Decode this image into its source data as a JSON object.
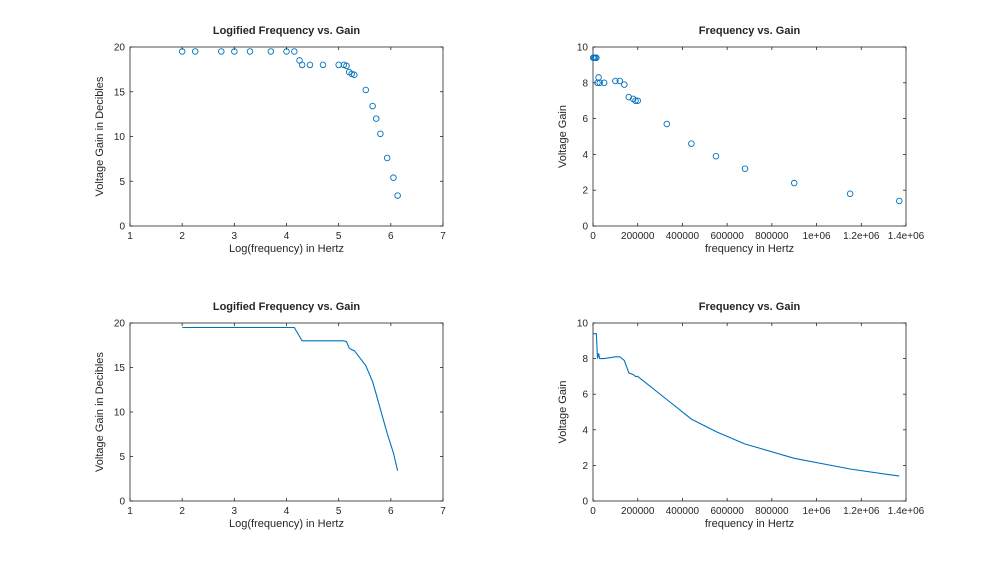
{
  "chart_data": [
    {
      "type": "scatter",
      "title": "Logified Frequency vs. Gain",
      "xlabel": "Log(frequency) in Hertz",
      "ylabel": "Voltage Gain in Decibles",
      "xlim": [
        1,
        7
      ],
      "ylim": [
        0,
        20
      ],
      "xticks": [
        "1",
        "2",
        "3",
        "4",
        "5",
        "6",
        "7"
      ],
      "yticks": [
        "0",
        "5",
        "10",
        "15",
        "20"
      ],
      "color": "#0072bd",
      "x": [
        2.0,
        2.25,
        2.75,
        3.0,
        3.3,
        3.7,
        4.0,
        4.15,
        4.25,
        4.3,
        4.45,
        4.7,
        5.0,
        5.1,
        5.15,
        5.2,
        5.25,
        5.3,
        5.52,
        5.65,
        5.72,
        5.8,
        5.93,
        6.05,
        6.13
      ],
      "y": [
        19.5,
        19.5,
        19.5,
        19.5,
        19.5,
        19.5,
        19.5,
        19.5,
        18.5,
        18.0,
        18.0,
        18.0,
        18.0,
        18.0,
        17.9,
        17.2,
        17.0,
        16.9,
        15.2,
        13.4,
        12.0,
        10.3,
        7.6,
        5.4,
        3.4
      ]
    },
    {
      "type": "scatter",
      "title": "Frequency vs. Gain",
      "xlabel": "frequency in Hertz",
      "ylabel": "Voltage Gain",
      "xlim": [
        0,
        1400000
      ],
      "ylim": [
        0,
        10
      ],
      "xticks": [
        "0",
        "200000",
        "400000",
        "600000",
        "800000",
        "1e+06",
        "1.2e+06",
        "1.4e+06"
      ],
      "yticks": [
        "0",
        "2",
        "4",
        "6",
        "8",
        "10"
      ],
      "color": "#0072bd",
      "x": [
        1000,
        5000,
        10000,
        15000,
        20000,
        25000,
        30000,
        50000,
        100000,
        120000,
        140000,
        160000,
        180000,
        190000,
        200000,
        330000,
        440000,
        550000,
        680000,
        900000,
        1150000,
        1370000
      ],
      "y": [
        9.4,
        9.4,
        9.4,
        9.4,
        8.0,
        8.3,
        8.0,
        8.0,
        8.1,
        8.1,
        7.9,
        7.2,
        7.1,
        7.0,
        7.0,
        5.7,
        4.6,
        3.9,
        3.2,
        2.4,
        1.8,
        1.4
      ]
    },
    {
      "type": "line",
      "title": "Logified Frequency vs. Gain",
      "xlabel": "Log(frequency) in Hertz",
      "ylabel": "Voltage Gain in Decibles",
      "xlim": [
        1,
        7
      ],
      "ylim": [
        0,
        20
      ],
      "xticks": [
        "1",
        "2",
        "3",
        "4",
        "5",
        "6",
        "7"
      ],
      "yticks": [
        "0",
        "5",
        "10",
        "15",
        "20"
      ],
      "color": "#0072bd",
      "x": [
        2.0,
        2.25,
        2.75,
        3.0,
        3.3,
        3.7,
        4.0,
        4.15,
        4.25,
        4.3,
        4.45,
        4.7,
        5.0,
        5.1,
        5.15,
        5.2,
        5.25,
        5.3,
        5.52,
        5.65,
        5.72,
        5.8,
        5.93,
        6.05,
        6.13
      ],
      "y": [
        19.5,
        19.5,
        19.5,
        19.5,
        19.5,
        19.5,
        19.5,
        19.5,
        18.5,
        18.0,
        18.0,
        18.0,
        18.0,
        18.0,
        17.9,
        17.2,
        17.0,
        16.9,
        15.2,
        13.4,
        12.0,
        10.3,
        7.6,
        5.4,
        3.4
      ]
    },
    {
      "type": "line",
      "title": "Frequency vs. Gain",
      "xlabel": "frequency in Hertz",
      "ylabel": "Voltage Gain",
      "xlim": [
        0,
        1400000
      ],
      "ylim": [
        0,
        10
      ],
      "xticks": [
        "0",
        "200000",
        "400000",
        "600000",
        "800000",
        "1e+06",
        "1.2e+06",
        "1.4e+06"
      ],
      "yticks": [
        "0",
        "2",
        "4",
        "6",
        "8",
        "10"
      ],
      "color": "#0072bd",
      "x": [
        1000,
        5000,
        10000,
        15000,
        20000,
        25000,
        30000,
        50000,
        100000,
        120000,
        140000,
        160000,
        180000,
        190000,
        200000,
        330000,
        440000,
        550000,
        680000,
        900000,
        1150000,
        1370000
      ],
      "y": [
        9.4,
        9.4,
        9.4,
        9.4,
        8.0,
        8.3,
        8.0,
        8.0,
        8.1,
        8.1,
        7.9,
        7.2,
        7.1,
        7.0,
        7.0,
        5.7,
        4.6,
        3.9,
        3.2,
        2.4,
        1.8,
        1.4
      ]
    }
  ]
}
